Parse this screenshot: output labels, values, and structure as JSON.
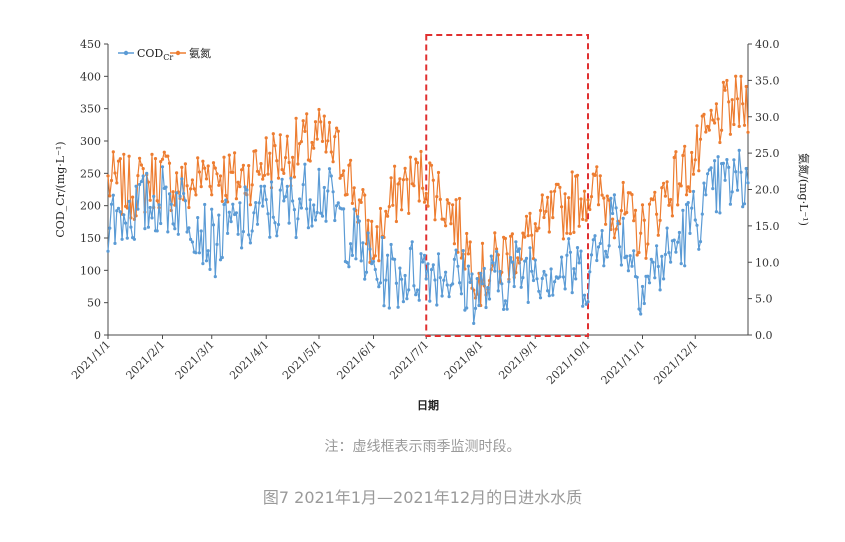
{
  "note": "注：虚线框表示雨季监测时段。",
  "caption": "图7 2021年1月—2021年12月的日进水水质",
  "chart_data": {
    "type": "line",
    "xlabel": "日期",
    "ylabel_left": "COD_Cr/(mg·L⁻¹)",
    "ylabel_right": "氨氮/(mg·L⁻¹)",
    "x_tick_labels": [
      "2021/1/1",
      "2021/2/1",
      "2021/3/1",
      "2021/4/1",
      "2021/5/1",
      "2021/6/1",
      "2021/7/1",
      "2021/8/1",
      "2021/9/1",
      "2021/10/1",
      "2021/11/1",
      "2021/12/1"
    ],
    "ylim_left": [
      0,
      450
    ],
    "yticks_left": [
      "0",
      "50",
      "100",
      "150",
      "200",
      "250",
      "300",
      "350",
      "400",
      "450"
    ],
    "ylim_right": [
      0,
      40
    ],
    "yticks_right": [
      "0.0",
      "5.0",
      "10.0",
      "15.0",
      "20.0",
      "25.0",
      "30.0",
      "35.0",
      "40.0"
    ],
    "legend": {
      "placement": "top-left"
    },
    "highlight_box": {
      "from": "2021/7/1",
      "to": "2021/10/1",
      "style": "red-dashed"
    },
    "colors": {
      "cod": "#5b9bd5",
      "nh3": "#ed7d31",
      "box": "#e03030"
    },
    "series": [
      {
        "name": "CODCr",
        "axis": "left",
        "x": [
          "2021/1/1",
          "2021/1/15",
          "2021/2/1",
          "2021/2/15",
          "2021/3/1",
          "2021/3/15",
          "2021/4/1",
          "2021/4/15",
          "2021/5/1",
          "2021/5/15",
          "2021/6/1",
          "2021/6/15",
          "2021/7/1",
          "2021/7/15",
          "2021/8/1",
          "2021/8/15",
          "2021/9/1",
          "2021/9/15",
          "2021/10/1",
          "2021/10/15",
          "2021/11/1",
          "2021/11/15",
          "2021/12/1",
          "2021/12/15",
          "2021/12/31"
        ],
        "values": [
          180,
          190,
          210,
          200,
          140,
          170,
          190,
          200,
          230,
          170,
          100,
          90,
          105,
          95,
          65,
          90,
          110,
          100,
          95,
          190,
          80,
          120,
          180,
          230,
          240
        ]
      },
      {
        "name": "氨氮",
        "axis": "right",
        "x": [
          "2021/1/1",
          "2021/1/15",
          "2021/2/1",
          "2021/2/15",
          "2021/3/1",
          "2021/3/15",
          "2021/4/1",
          "2021/4/15",
          "2021/5/1",
          "2021/5/15",
          "2021/6/1",
          "2021/6/15",
          "2021/7/1",
          "2021/7/15",
          "2021/8/1",
          "2021/8/15",
          "2021/9/1",
          "2021/9/15",
          "2021/10/1",
          "2021/10/15",
          "2021/11/1",
          "2021/11/15",
          "2021/12/1",
          "2021/12/15",
          "2021/12/31"
        ],
        "values": [
          21,
          20,
          22,
          20,
          23,
          21,
          24,
          25,
          27,
          24,
          12,
          20,
          22,
          17,
          8,
          11,
          14,
          17,
          20,
          18,
          14,
          20,
          24,
          30,
          32
        ]
      }
    ]
  }
}
